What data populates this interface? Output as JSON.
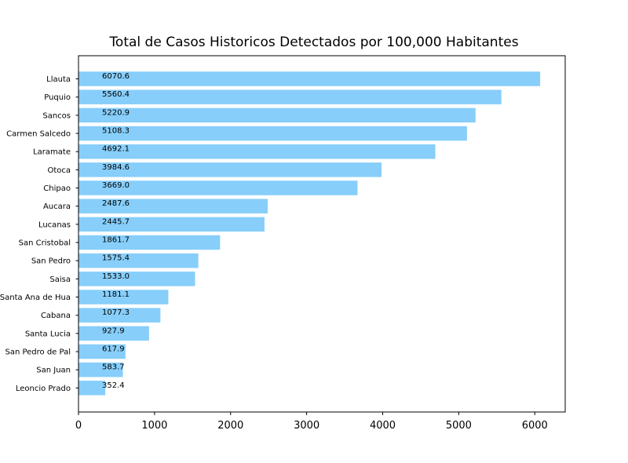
{
  "chart_data": {
    "type": "bar",
    "orientation": "horizontal",
    "title": "Total de Casos Historicos Detectados por 100,000 Habitantes",
    "xlabel": "",
    "ylabel": "",
    "xlim": [
      0,
      6400
    ],
    "xticks": [
      0,
      1000,
      2000,
      3000,
      4000,
      5000,
      6000
    ],
    "bar_color": "#87cefa",
    "grid": false,
    "categories": [
      "Llauta",
      "Puquio",
      "Sancos",
      "Carmen Salcedo",
      "Laramate",
      "Otoca",
      "Chipao",
      "Aucara",
      "Lucanas",
      "San Cristobal",
      "San Pedro",
      "Saisa",
      "Santa Ana de Hua",
      "Cabana",
      "Santa Lucia",
      "San Pedro de Pal",
      "San Juan",
      "Leoncio Prado"
    ],
    "values": [
      6070.6,
      5560.4,
      5220.9,
      5108.3,
      4692.1,
      3984.6,
      3669.0,
      2487.6,
      2445.7,
      1861.7,
      1575.4,
      1533.0,
      1181.1,
      1077.3,
      927.9,
      617.9,
      583.7,
      352.4
    ],
    "data_labels": [
      "6070.6",
      "5560.4",
      "5220.9",
      "5108.3",
      "4692.1",
      "3984.6",
      "3669.0",
      "2487.6",
      "2445.7",
      "1861.7",
      "1575.4",
      "1533.0",
      "1181.1",
      "1077.3",
      "927.9",
      "617.9",
      "583.7",
      "352.4"
    ]
  }
}
